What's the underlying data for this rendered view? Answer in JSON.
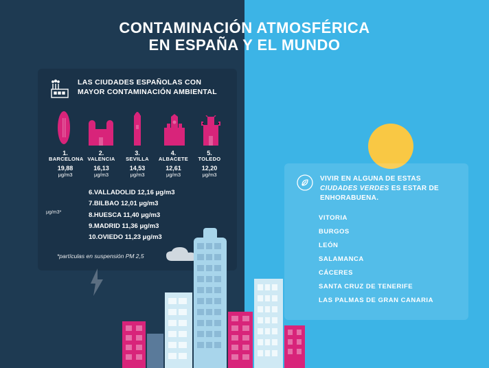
{
  "colors": {
    "left_bg": "#1e3a52",
    "right_bg": "#3cb4e6",
    "accent_pink": "#d8247a",
    "sun": "#f9c844",
    "building_blue": "#cfe9f4",
    "building_blue2": "#a8d5eb",
    "building_dark": "#5a7a9a",
    "cloud": "#d8e0e6",
    "lightning": "#5b6e81"
  },
  "title_line1": "CONTAMINACIÓN ATMOSFÉRICA",
  "title_line2": "EN ESPAÑA Y EL MUNDO",
  "left_card": {
    "subtitle": "LAS CIUDADES ESPAÑOLAS CON MAYOR CONTAMINACIÓN AMBIENTAL",
    "unit_label": "μg/m3*",
    "top5": [
      {
        "rank": "1.",
        "name": "BARCELONA",
        "value": "19,88",
        "unit": "μg/m3"
      },
      {
        "rank": "2.",
        "name": "VALENCIA",
        "value": "16,13",
        "unit": "μg/m3"
      },
      {
        "rank": "3.",
        "name": "SEVILLA",
        "value": "14,53",
        "unit": "μg/m3"
      },
      {
        "rank": "4.",
        "name": "ALBACETE",
        "value": "12,61",
        "unit": "μg/m3"
      },
      {
        "rank": "5.",
        "name": "TOLEDO",
        "value": "12,20",
        "unit": "μg/m3"
      }
    ],
    "more": [
      "6.VALLADOLID 12,16 μg/m3",
      "7.BILBAO 12,01 μg/m3",
      "8.HUESCA 11,40 μg/m3",
      "9.MADRID 11,36 μg/m3",
      "10.OVIEDO 11,23 μg/m3"
    ],
    "footnote": "*partículas en suspensión PM 2,5"
  },
  "right_card": {
    "title_pre": "VIVIR EN ALGUNA DE ESTAS",
    "title_em": "CIUDADES VERDES",
    "title_post": "ES ESTAR DE ENHORABUENA.",
    "cities": [
      "VITORIA",
      "BURGOS",
      "LEÓN",
      "SALAMANCA",
      "CÁCERES",
      "SANTA CRUZ DE TENERIFE",
      "LAS PALMAS DE GRAN CANARIA"
    ]
  }
}
